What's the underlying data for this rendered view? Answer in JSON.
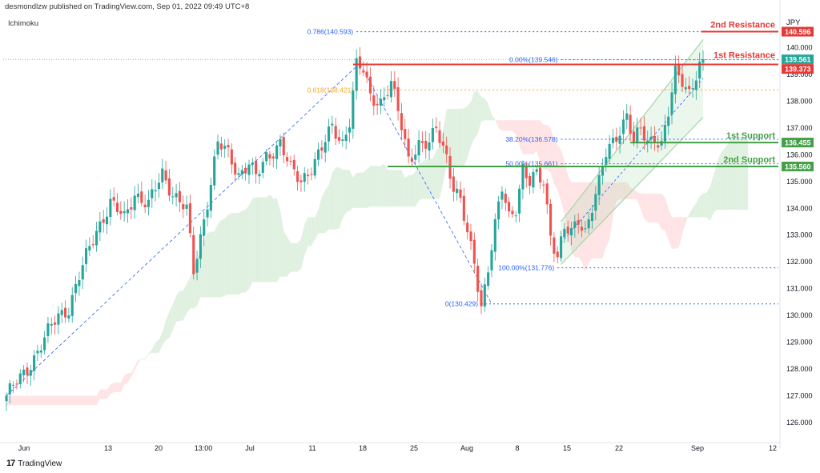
{
  "header": {
    "published_line": "desmondlzw published on TradingView.com, Sep 01, 2022 09:49 UTC+8",
    "indicator": "Ichimoku"
  },
  "footer": {
    "logo": "17",
    "brand": "TradingView"
  },
  "colors": {
    "up": "#26a69a",
    "down": "#ef5350",
    "resistance": "#e53935",
    "support": "#43a047",
    "fib_dotted": "#2962ff",
    "fib_label": "#2962ff",
    "fib_618": "#f9a825",
    "cloud_green": "#c8e6c9",
    "cloud_red": "#ffcdd2",
    "channel": "#a5d6a7"
  },
  "chart_data": {
    "type": "candlestick",
    "currency": "JPY",
    "ylim": [
      125.4,
      141.3
    ],
    "y_ticks": [
      "126.000",
      "127.000",
      "128.000",
      "129.000",
      "130.000",
      "131.000",
      "132.000",
      "133.000",
      "134.000",
      "135.000",
      "136.000",
      "137.000",
      "138.000",
      "139.000",
      "140.000"
    ],
    "x_ticks": [
      "Jun",
      "13",
      "20",
      "13:00",
      "Jul",
      "11",
      "18",
      "25",
      "Aug",
      "8",
      "15",
      "22",
      "Sep",
      "12"
    ],
    "levels": [
      {
        "name": "2nd Resistance",
        "value": 140.596,
        "tag": "140.596",
        "kind": "resistance"
      },
      {
        "name": "1st Resistance",
        "value": 139.373,
        "tag": "139.373",
        "kind": "resistance"
      },
      {
        "name": "1st Support",
        "value": 136.455,
        "tag": "136.455",
        "kind": "support"
      },
      {
        "name": "2nd Support",
        "value": 135.56,
        "tag": "135.560",
        "kind": "support"
      }
    ],
    "last_price": {
      "value": 139.561,
      "tag": "139.561"
    },
    "fib_left": [
      {
        "label": "0.786(140.593)",
        "value": 140.593
      },
      {
        "label": "0.618(138.421)",
        "value": 138.421
      },
      {
        "label": "0(130.429)",
        "value": 130.429
      }
    ],
    "fib_right": [
      {
        "label": "0.00%(139.546)",
        "value": 139.546
      },
      {
        "label": "38.20%(136.578)",
        "value": 136.578
      },
      {
        "label": "50.00%(135.661)",
        "value": 135.661
      },
      {
        "label": "100.00%(131.776)",
        "value": 131.776
      }
    ],
    "anchors": [
      [
        0,
        127.0
      ],
      [
        5,
        127.8
      ],
      [
        10,
        128.9
      ],
      [
        15,
        130.0
      ],
      [
        18,
        130.3
      ],
      [
        22,
        131.8
      ],
      [
        26,
        133.2
      ],
      [
        30,
        134.2
      ],
      [
        34,
        133.6
      ],
      [
        37,
        134.6
      ],
      [
        41,
        134.1
      ],
      [
        45,
        135.3
      ],
      [
        48,
        134.6
      ],
      [
        52,
        133.9
      ],
      [
        54,
        131.6
      ],
      [
        58,
        134.3
      ],
      [
        61,
        136.4
      ],
      [
        64,
        136.0
      ],
      [
        67,
        135.3
      ],
      [
        70,
        135.7
      ],
      [
        72,
        135.1
      ],
      [
        75,
        135.9
      ],
      [
        79,
        136.5
      ],
      [
        82,
        135.4
      ],
      [
        85,
        135.0
      ],
      [
        89,
        135.8
      ],
      [
        91,
        136.2
      ],
      [
        94,
        137.0
      ],
      [
        97,
        136.5
      ],
      [
        99,
        137.3
      ],
      [
        101,
        139.3
      ],
      [
        103,
        139.1
      ],
      [
        105,
        138.2
      ],
      [
        108,
        138.0
      ],
      [
        111,
        138.6
      ],
      [
        113,
        137.6
      ],
      [
        116,
        135.9
      ],
      [
        119,
        136.4
      ],
      [
        122,
        136.3
      ],
      [
        124,
        137.0
      ],
      [
        127,
        136.0
      ],
      [
        129,
        134.8
      ],
      [
        131,
        134.2
      ],
      [
        133,
        133.0
      ],
      [
        135,
        132.0
      ],
      [
        137,
        130.4
      ],
      [
        139,
        131.8
      ],
      [
        141,
        133.3
      ],
      [
        143,
        134.7
      ],
      [
        145,
        133.7
      ],
      [
        147,
        134.1
      ],
      [
        149,
        135.5
      ],
      [
        151,
        134.9
      ],
      [
        153,
        135.2
      ],
      [
        155,
        135.0
      ],
      [
        157,
        133.1
      ],
      [
        159,
        132.2
      ],
      [
        161,
        133.2
      ],
      [
        163,
        133.0
      ],
      [
        165,
        133.6
      ],
      [
        167,
        133.2
      ],
      [
        169,
        134.1
      ],
      [
        171,
        134.9
      ],
      [
        173,
        136.0
      ],
      [
        175,
        136.5
      ],
      [
        177,
        137.0
      ],
      [
        179,
        137.5
      ],
      [
        181,
        136.4
      ],
      [
        183,
        136.9
      ],
      [
        185,
        136.5
      ],
      [
        187,
        136.7
      ],
      [
        189,
        136.4
      ],
      [
        191,
        137.5
      ],
      [
        193,
        139.0
      ],
      [
        195,
        138.8
      ],
      [
        197,
        138.4
      ],
      [
        199,
        139.0
      ],
      [
        201,
        139.56
      ]
    ]
  }
}
